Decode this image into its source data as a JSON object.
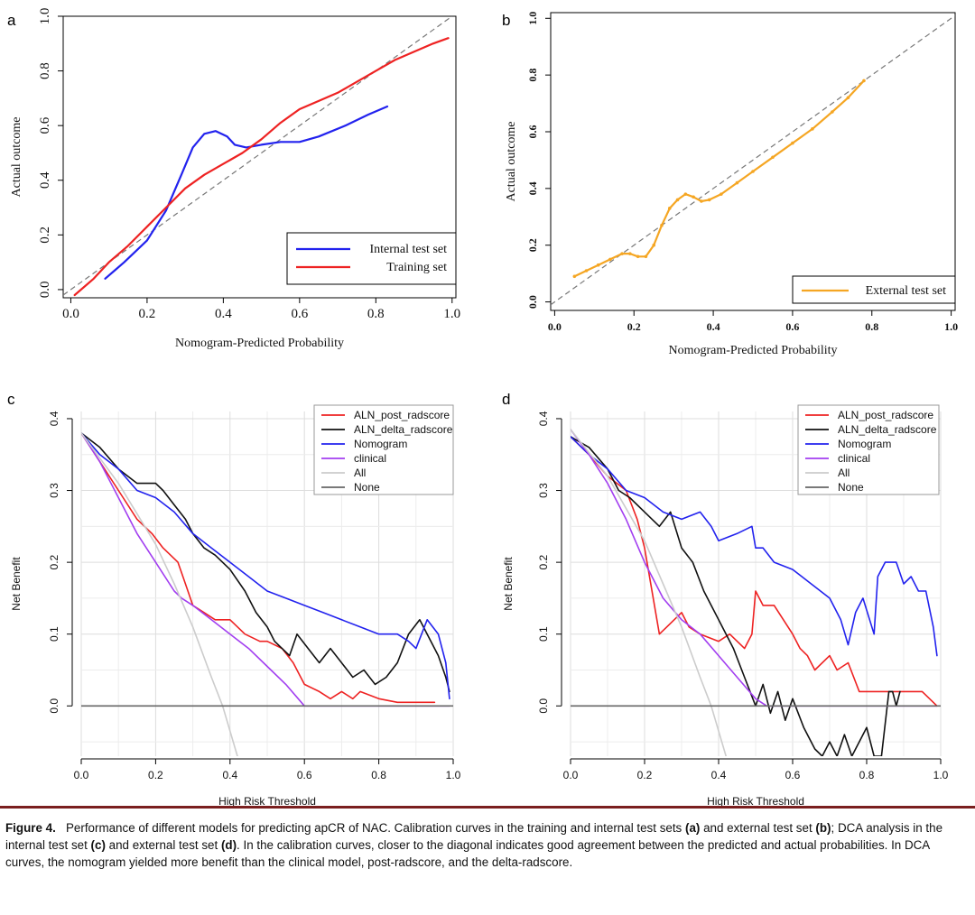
{
  "panels": {
    "a": {
      "letter": "a"
    },
    "b": {
      "letter": "b"
    },
    "c": {
      "letter": "c"
    },
    "d": {
      "letter": "d"
    }
  },
  "caption": {
    "label": "Figure 4.",
    "text1": "Performance of different models for predicting apCR of NAC. Calibration curves in the training and internal test sets ",
    "ref_a": "(a)",
    "text2": " and external test set ",
    "ref_b": "(b)",
    "text3": "; DCA analysis in the internal test set ",
    "ref_c": "(c)",
    "text4": " and external test set ",
    "ref_d": "(d)",
    "text5": ". In the calibration curves, closer to the diagonal indicates good agreement between the predicted and actual probabilities. In DCA curves, the nomogram yielded more benefit than the clinical model, post-radscore, and the delta-radscore."
  },
  "colors": {
    "blue": "#2222ee",
    "red": "#ee2222",
    "orange": "#f5a623",
    "black": "#111111",
    "purple": "#a23ef0",
    "light_gray": "#cccccc",
    "dark_gray": "#666666",
    "diagonal": "#777777"
  },
  "chart_data": [
    {
      "id": "a",
      "type": "line",
      "title": "",
      "xlabel": "Nomogram-Predicted Probability",
      "ylabel": "Actual outcome",
      "xlim": [
        -0.02,
        1.01
      ],
      "ylim": [
        -0.03,
        1.0
      ],
      "xticks": [
        "0.0",
        "0.2",
        "0.4",
        "0.6",
        "0.8",
        "1.0"
      ],
      "yticks": [
        "0.0",
        "0.2",
        "0.4",
        "0.6",
        "0.8",
        "1.0"
      ],
      "diagonal": true,
      "legend_position": "bottom-right",
      "series": [
        {
          "name": "Internal test set",
          "color": "#2222ee",
          "x": [
            0.09,
            0.14,
            0.2,
            0.25,
            0.29,
            0.32,
            0.35,
            0.38,
            0.41,
            0.43,
            0.46,
            0.5,
            0.55,
            0.6,
            0.65,
            0.72,
            0.78,
            0.83
          ],
          "y": [
            0.04,
            0.1,
            0.18,
            0.29,
            0.42,
            0.52,
            0.57,
            0.58,
            0.56,
            0.53,
            0.52,
            0.53,
            0.54,
            0.54,
            0.56,
            0.6,
            0.64,
            0.67
          ]
        },
        {
          "name": "Training set",
          "color": "#ee2222",
          "x": [
            0.01,
            0.06,
            0.1,
            0.15,
            0.2,
            0.25,
            0.3,
            0.35,
            0.4,
            0.45,
            0.5,
            0.55,
            0.6,
            0.65,
            0.7,
            0.75,
            0.8,
            0.85,
            0.9,
            0.95,
            0.99
          ],
          "y": [
            -0.02,
            0.04,
            0.1,
            0.16,
            0.23,
            0.3,
            0.37,
            0.42,
            0.46,
            0.5,
            0.55,
            0.61,
            0.66,
            0.69,
            0.72,
            0.76,
            0.8,
            0.84,
            0.87,
            0.9,
            0.92
          ]
        }
      ]
    },
    {
      "id": "b",
      "type": "line",
      "title": "",
      "xlabel": "Nomogram-Predicted Probability",
      "ylabel": "Actual outcome",
      "xlim": [
        -0.01,
        1.01
      ],
      "ylim": [
        -0.03,
        1.02
      ],
      "xticks": [
        "0.0",
        "0.2",
        "0.4",
        "0.6",
        "0.8",
        "1.0"
      ],
      "yticks": [
        "0.0",
        "0.2",
        "0.4",
        "0.6",
        "0.8",
        "1.0"
      ],
      "diagonal": true,
      "legend_position": "bottom-right",
      "series": [
        {
          "name": "External test set",
          "color": "#f5a623",
          "markers": true,
          "x": [
            0.05,
            0.08,
            0.11,
            0.14,
            0.17,
            0.19,
            0.21,
            0.23,
            0.25,
            0.27,
            0.29,
            0.31,
            0.33,
            0.35,
            0.37,
            0.39,
            0.42,
            0.46,
            0.5,
            0.55,
            0.6,
            0.65,
            0.7,
            0.74,
            0.78
          ],
          "y": [
            0.09,
            0.11,
            0.13,
            0.15,
            0.17,
            0.17,
            0.16,
            0.16,
            0.2,
            0.27,
            0.33,
            0.36,
            0.38,
            0.37,
            0.355,
            0.36,
            0.38,
            0.42,
            0.46,
            0.51,
            0.56,
            0.61,
            0.67,
            0.72,
            0.78
          ]
        }
      ]
    },
    {
      "id": "c",
      "type": "line",
      "title": "",
      "xlabel": "High Risk Threshold",
      "ylabel": "Net Benefit",
      "xlim": [
        0.0,
        1.0
      ],
      "ylim": [
        -0.07,
        0.41
      ],
      "xticks": [
        "0.0",
        "0.2",
        "0.4",
        "0.6",
        "0.8",
        "1.0"
      ],
      "yticks": [
        "0.0",
        "0.1",
        "0.2",
        "0.3",
        "0.4"
      ],
      "grid": true,
      "legend_position": "top-right",
      "series": [
        {
          "name": "ALN_post_radscore",
          "color": "#ee2222",
          "x": [
            0.0,
            0.05,
            0.1,
            0.15,
            0.19,
            0.22,
            0.26,
            0.28,
            0.3,
            0.33,
            0.36,
            0.4,
            0.44,
            0.48,
            0.5,
            0.54,
            0.57,
            0.6,
            0.64,
            0.67,
            0.7,
            0.73,
            0.75,
            0.8,
            0.85,
            0.9,
            0.95
          ],
          "y": [
            0.38,
            0.34,
            0.3,
            0.26,
            0.24,
            0.22,
            0.2,
            0.17,
            0.14,
            0.13,
            0.12,
            0.12,
            0.1,
            0.09,
            0.09,
            0.08,
            0.06,
            0.03,
            0.02,
            0.01,
            0.02,
            0.01,
            0.02,
            0.01,
            0.005,
            0.005,
            0.005
          ]
        },
        {
          "name": "ALN_delta_radscore",
          "color": "#111111",
          "x": [
            0.0,
            0.05,
            0.1,
            0.15,
            0.2,
            0.22,
            0.25,
            0.28,
            0.3,
            0.33,
            0.36,
            0.4,
            0.44,
            0.47,
            0.5,
            0.52,
            0.56,
            0.58,
            0.61,
            0.64,
            0.67,
            0.7,
            0.73,
            0.76,
            0.79,
            0.82,
            0.85,
            0.88,
            0.91,
            0.94,
            0.96,
            0.98,
            0.99
          ],
          "y": [
            0.38,
            0.36,
            0.33,
            0.31,
            0.31,
            0.3,
            0.28,
            0.26,
            0.24,
            0.22,
            0.21,
            0.19,
            0.16,
            0.13,
            0.11,
            0.09,
            0.07,
            0.1,
            0.08,
            0.06,
            0.08,
            0.06,
            0.04,
            0.05,
            0.03,
            0.04,
            0.06,
            0.1,
            0.12,
            0.09,
            0.07,
            0.04,
            0.02
          ]
        },
        {
          "name": "Nomogram",
          "color": "#2222ee",
          "x": [
            0.0,
            0.05,
            0.1,
            0.15,
            0.2,
            0.25,
            0.3,
            0.35,
            0.4,
            0.45,
            0.5,
            0.55,
            0.6,
            0.65,
            0.7,
            0.75,
            0.8,
            0.85,
            0.88,
            0.9,
            0.93,
            0.96,
            0.98,
            0.99
          ],
          "y": [
            0.38,
            0.35,
            0.33,
            0.3,
            0.29,
            0.27,
            0.24,
            0.22,
            0.2,
            0.18,
            0.16,
            0.15,
            0.14,
            0.13,
            0.12,
            0.11,
            0.1,
            0.1,
            0.09,
            0.08,
            0.12,
            0.1,
            0.06,
            0.01
          ]
        },
        {
          "name": "clinical",
          "color": "#a23ef0",
          "x": [
            0.0,
            0.05,
            0.1,
            0.15,
            0.2,
            0.25,
            0.27,
            0.3,
            0.35,
            0.4,
            0.45,
            0.5,
            0.55,
            0.6,
            0.7,
            0.8,
            0.9,
            0.99
          ],
          "y": [
            0.38,
            0.34,
            0.29,
            0.24,
            0.2,
            0.16,
            0.15,
            0.14,
            0.12,
            0.1,
            0.08,
            0.055,
            0.03,
            0.0,
            0.0,
            0.0,
            0.0,
            0.0
          ]
        },
        {
          "name": "All",
          "color": "#cccccc",
          "x": [
            0.0,
            0.1,
            0.2,
            0.25,
            0.3,
            0.35,
            0.38,
            0.42
          ],
          "y": [
            0.38,
            0.31,
            0.225,
            0.17,
            0.11,
            0.04,
            0.0,
            -0.07
          ]
        },
        {
          "name": "None",
          "color": "#666666",
          "x": [
            0.0,
            1.0
          ],
          "y": [
            0.0,
            0.0
          ]
        }
      ]
    },
    {
      "id": "d",
      "type": "line",
      "title": "",
      "xlabel": "High Risk Threshold",
      "ylabel": "Net Benefit",
      "xlim": [
        0.0,
        1.0
      ],
      "ylim": [
        -0.07,
        0.41
      ],
      "xticks": [
        "0.0",
        "0.2",
        "0.4",
        "0.6",
        "0.8",
        "1.0"
      ],
      "yticks": [
        "0.0",
        "0.1",
        "0.2",
        "0.3",
        "0.4"
      ],
      "grid": true,
      "legend_position": "top-right",
      "series": [
        {
          "name": "ALN_post_radscore",
          "color": "#ee2222",
          "x": [
            0.0,
            0.05,
            0.1,
            0.15,
            0.18,
            0.2,
            0.22,
            0.24,
            0.26,
            0.3,
            0.32,
            0.35,
            0.4,
            0.43,
            0.47,
            0.49,
            0.5,
            0.52,
            0.55,
            0.6,
            0.62,
            0.64,
            0.66,
            0.7,
            0.72,
            0.75,
            0.78,
            0.85,
            0.9,
            0.95,
            0.99
          ],
          "y": [
            0.375,
            0.35,
            0.32,
            0.3,
            0.26,
            0.22,
            0.16,
            0.1,
            0.11,
            0.13,
            0.11,
            0.1,
            0.09,
            0.1,
            0.08,
            0.1,
            0.16,
            0.14,
            0.14,
            0.1,
            0.08,
            0.07,
            0.05,
            0.07,
            0.05,
            0.06,
            0.02,
            0.02,
            0.02,
            0.02,
            0.0
          ]
        },
        {
          "name": "ALN_delta_radscore",
          "color": "#111111",
          "x": [
            0.0,
            0.05,
            0.1,
            0.13,
            0.16,
            0.2,
            0.24,
            0.27,
            0.3,
            0.33,
            0.36,
            0.4,
            0.44,
            0.47,
            0.5,
            0.52,
            0.54,
            0.56,
            0.58,
            0.6,
            0.63,
            0.66,
            0.68,
            0.7,
            0.72,
            0.74,
            0.76,
            0.78,
            0.8,
            0.82,
            0.84,
            0.86,
            0.87,
            0.88,
            0.89
          ],
          "y": [
            0.375,
            0.36,
            0.33,
            0.3,
            0.29,
            0.27,
            0.25,
            0.27,
            0.22,
            0.2,
            0.16,
            0.12,
            0.08,
            0.04,
            0.0,
            0.03,
            -0.01,
            0.02,
            -0.02,
            0.01,
            -0.03,
            -0.06,
            -0.07,
            -0.05,
            -0.07,
            -0.04,
            -0.07,
            -0.05,
            -0.03,
            -0.07,
            -0.07,
            0.02,
            0.02,
            0.0,
            0.02
          ]
        },
        {
          "name": "Nomogram",
          "color": "#2222ee",
          "x": [
            0.0,
            0.05,
            0.1,
            0.15,
            0.2,
            0.25,
            0.3,
            0.35,
            0.38,
            0.4,
            0.45,
            0.49,
            0.5,
            0.52,
            0.55,
            0.6,
            0.65,
            0.7,
            0.73,
            0.75,
            0.77,
            0.79,
            0.82,
            0.83,
            0.85,
            0.88,
            0.9,
            0.92,
            0.94,
            0.96,
            0.98,
            0.99
          ],
          "y": [
            0.375,
            0.35,
            0.33,
            0.3,
            0.29,
            0.27,
            0.26,
            0.27,
            0.25,
            0.23,
            0.24,
            0.25,
            0.22,
            0.22,
            0.2,
            0.19,
            0.17,
            0.15,
            0.12,
            0.085,
            0.13,
            0.15,
            0.1,
            0.18,
            0.2,
            0.2,
            0.17,
            0.18,
            0.16,
            0.16,
            0.11,
            0.07
          ]
        },
        {
          "name": "clinical",
          "color": "#a23ef0",
          "x": [
            0.0,
            0.05,
            0.1,
            0.15,
            0.2,
            0.25,
            0.3,
            0.35,
            0.4,
            0.45,
            0.5,
            0.53,
            0.6,
            0.7,
            0.8,
            0.9,
            0.99
          ],
          "y": [
            0.385,
            0.35,
            0.31,
            0.26,
            0.2,
            0.15,
            0.12,
            0.1,
            0.07,
            0.04,
            0.01,
            0.0,
            0.0,
            0.0,
            0.0,
            0.0,
            0.0
          ]
        },
        {
          "name": "All",
          "color": "#cccccc",
          "x": [
            0.0,
            0.1,
            0.2,
            0.25,
            0.3,
            0.35,
            0.38,
            0.42
          ],
          "y": [
            0.385,
            0.32,
            0.23,
            0.17,
            0.11,
            0.04,
            0.0,
            -0.07
          ]
        },
        {
          "name": "None",
          "color": "#666666",
          "x": [
            0.0,
            1.0
          ],
          "y": [
            0.0,
            0.0
          ]
        }
      ]
    }
  ]
}
